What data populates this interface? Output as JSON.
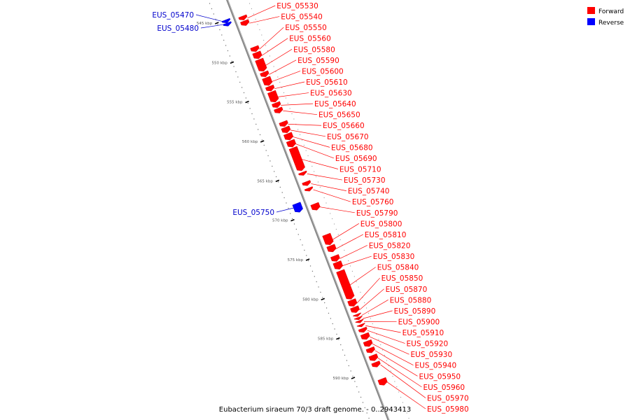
{
  "chart_data": {
    "type": "linear-genome-map",
    "caption": "Eubacterium siraeum 70/3 draft genome. - 0..2943413",
    "legend": [
      {
        "label": "Forward",
        "color": "#ff0000"
      },
      {
        "label": "Reverse",
        "color": "#0000ff"
      }
    ],
    "ticks": [
      {
        "label": "545 kbp",
        "kbp": 545
      },
      {
        "label": "550 kbp",
        "kbp": 550
      },
      {
        "label": "555 kbp",
        "kbp": 555
      },
      {
        "label": "560 kbp",
        "kbp": 560
      },
      {
        "label": "565 kbp",
        "kbp": 565
      },
      {
        "label": "570 kbp",
        "kbp": 570
      },
      {
        "label": "575 kbp",
        "kbp": 575
      },
      {
        "label": "580 kbp",
        "kbp": 580
      },
      {
        "label": "585 kbp",
        "kbp": 585
      },
      {
        "label": "590 kbp",
        "kbp": 590
      }
    ],
    "genes": [
      {
        "id": "EUS_05470",
        "strand": "reverse",
        "start": 544.2,
        "end": 544.6
      },
      {
        "id": "EUS_05480",
        "strand": "reverse",
        "start": 544.6,
        "end": 545.0
      },
      {
        "id": "EUS_05530",
        "strand": "forward",
        "start": 544.5,
        "end": 545.0
      },
      {
        "id": "EUS_05540",
        "strand": "forward",
        "start": 545.1,
        "end": 545.7
      },
      {
        "id": "EUS_05550",
        "strand": "forward",
        "start": 548.4,
        "end": 549.0
      },
      {
        "id": "EUS_05560",
        "strand": "forward",
        "start": 549.1,
        "end": 549.9
      },
      {
        "id": "EUS_05580",
        "strand": "forward",
        "start": 550.0,
        "end": 551.5
      },
      {
        "id": "EUS_05590",
        "strand": "forward",
        "start": 551.6,
        "end": 552.2
      },
      {
        "id": "EUS_05600",
        "strand": "forward",
        "start": 552.3,
        "end": 553.3
      },
      {
        "id": "EUS_05610",
        "strand": "forward",
        "start": 553.4,
        "end": 554.0
      },
      {
        "id": "EUS_05630",
        "strand": "forward",
        "start": 554.1,
        "end": 555.4
      },
      {
        "id": "EUS_05640",
        "strand": "forward",
        "start": 555.5,
        "end": 556.1
      },
      {
        "id": "EUS_05650",
        "strand": "forward",
        "start": 556.2,
        "end": 556.8
      },
      {
        "id": "EUS_05660",
        "strand": "forward",
        "start": 557.9,
        "end": 558.5
      },
      {
        "id": "EUS_05670",
        "strand": "forward",
        "start": 558.6,
        "end": 559.3
      },
      {
        "id": "EUS_05680",
        "strand": "forward",
        "start": 559.4,
        "end": 560.2
      },
      {
        "id": "EUS_05690",
        "strand": "forward",
        "start": 560.3,
        "end": 561.1
      },
      {
        "id": "EUS_05710",
        "strand": "forward",
        "start": 561.2,
        "end": 564.1
      },
      {
        "id": "EUS_05730",
        "strand": "forward",
        "start": 564.3,
        "end": 564.7
      },
      {
        "id": "EUS_05740",
        "strand": "forward",
        "start": 565.5,
        "end": 566.0
      },
      {
        "id": "EUS_05760",
        "strand": "forward",
        "start": 566.3,
        "end": 566.7
      },
      {
        "id": "EUS_05750",
        "strand": "reverse",
        "start": 567.5,
        "end": 568.6
      },
      {
        "id": "EUS_05790",
        "strand": "forward",
        "start": 568.3,
        "end": 569.1
      },
      {
        "id": "EUS_05800",
        "strand": "forward",
        "start": 572.2,
        "end": 573.5
      },
      {
        "id": "EUS_05810",
        "strand": "forward",
        "start": 573.6,
        "end": 574.4
      },
      {
        "id": "EUS_05820",
        "strand": "forward",
        "start": 574.9,
        "end": 575.6
      },
      {
        "id": "EUS_05830",
        "strand": "forward",
        "start": 575.7,
        "end": 576.6
      },
      {
        "id": "EUS_05840",
        "strand": "forward",
        "start": 576.8,
        "end": 580.4
      },
      {
        "id": "EUS_05850",
        "strand": "forward",
        "start": 580.5,
        "end": 581.3
      },
      {
        "id": "EUS_05870",
        "strand": "forward",
        "start": 581.4,
        "end": 582.1
      },
      {
        "id": "EUS_05880",
        "strand": "forward",
        "start": 582.3,
        "end": 582.6
      },
      {
        "id": "EUS_05890",
        "strand": "forward",
        "start": 582.7,
        "end": 583.0
      },
      {
        "id": "EUS_05900",
        "strand": "forward",
        "start": 583.1,
        "end": 583.4
      },
      {
        "id": "EUS_05910",
        "strand": "forward",
        "start": 583.6,
        "end": 583.9
      },
      {
        "id": "EUS_05920",
        "strand": "forward",
        "start": 584.1,
        "end": 584.6
      },
      {
        "id": "EUS_05930",
        "strand": "forward",
        "start": 584.8,
        "end": 585.5
      },
      {
        "id": "EUS_05940",
        "strand": "forward",
        "start": 585.7,
        "end": 586.4
      },
      {
        "id": "EUS_05950",
        "strand": "forward",
        "start": 586.6,
        "end": 587.2
      },
      {
        "id": "EUS_05960",
        "strand": "forward",
        "start": 587.5,
        "end": 588.2
      },
      {
        "id": "EUS_05970",
        "strand": "forward",
        "start": 588.4,
        "end": 589.0
      },
      {
        "id": "EUS_05980",
        "strand": "forward",
        "start": 590.5,
        "end": 591.3
      }
    ]
  }
}
